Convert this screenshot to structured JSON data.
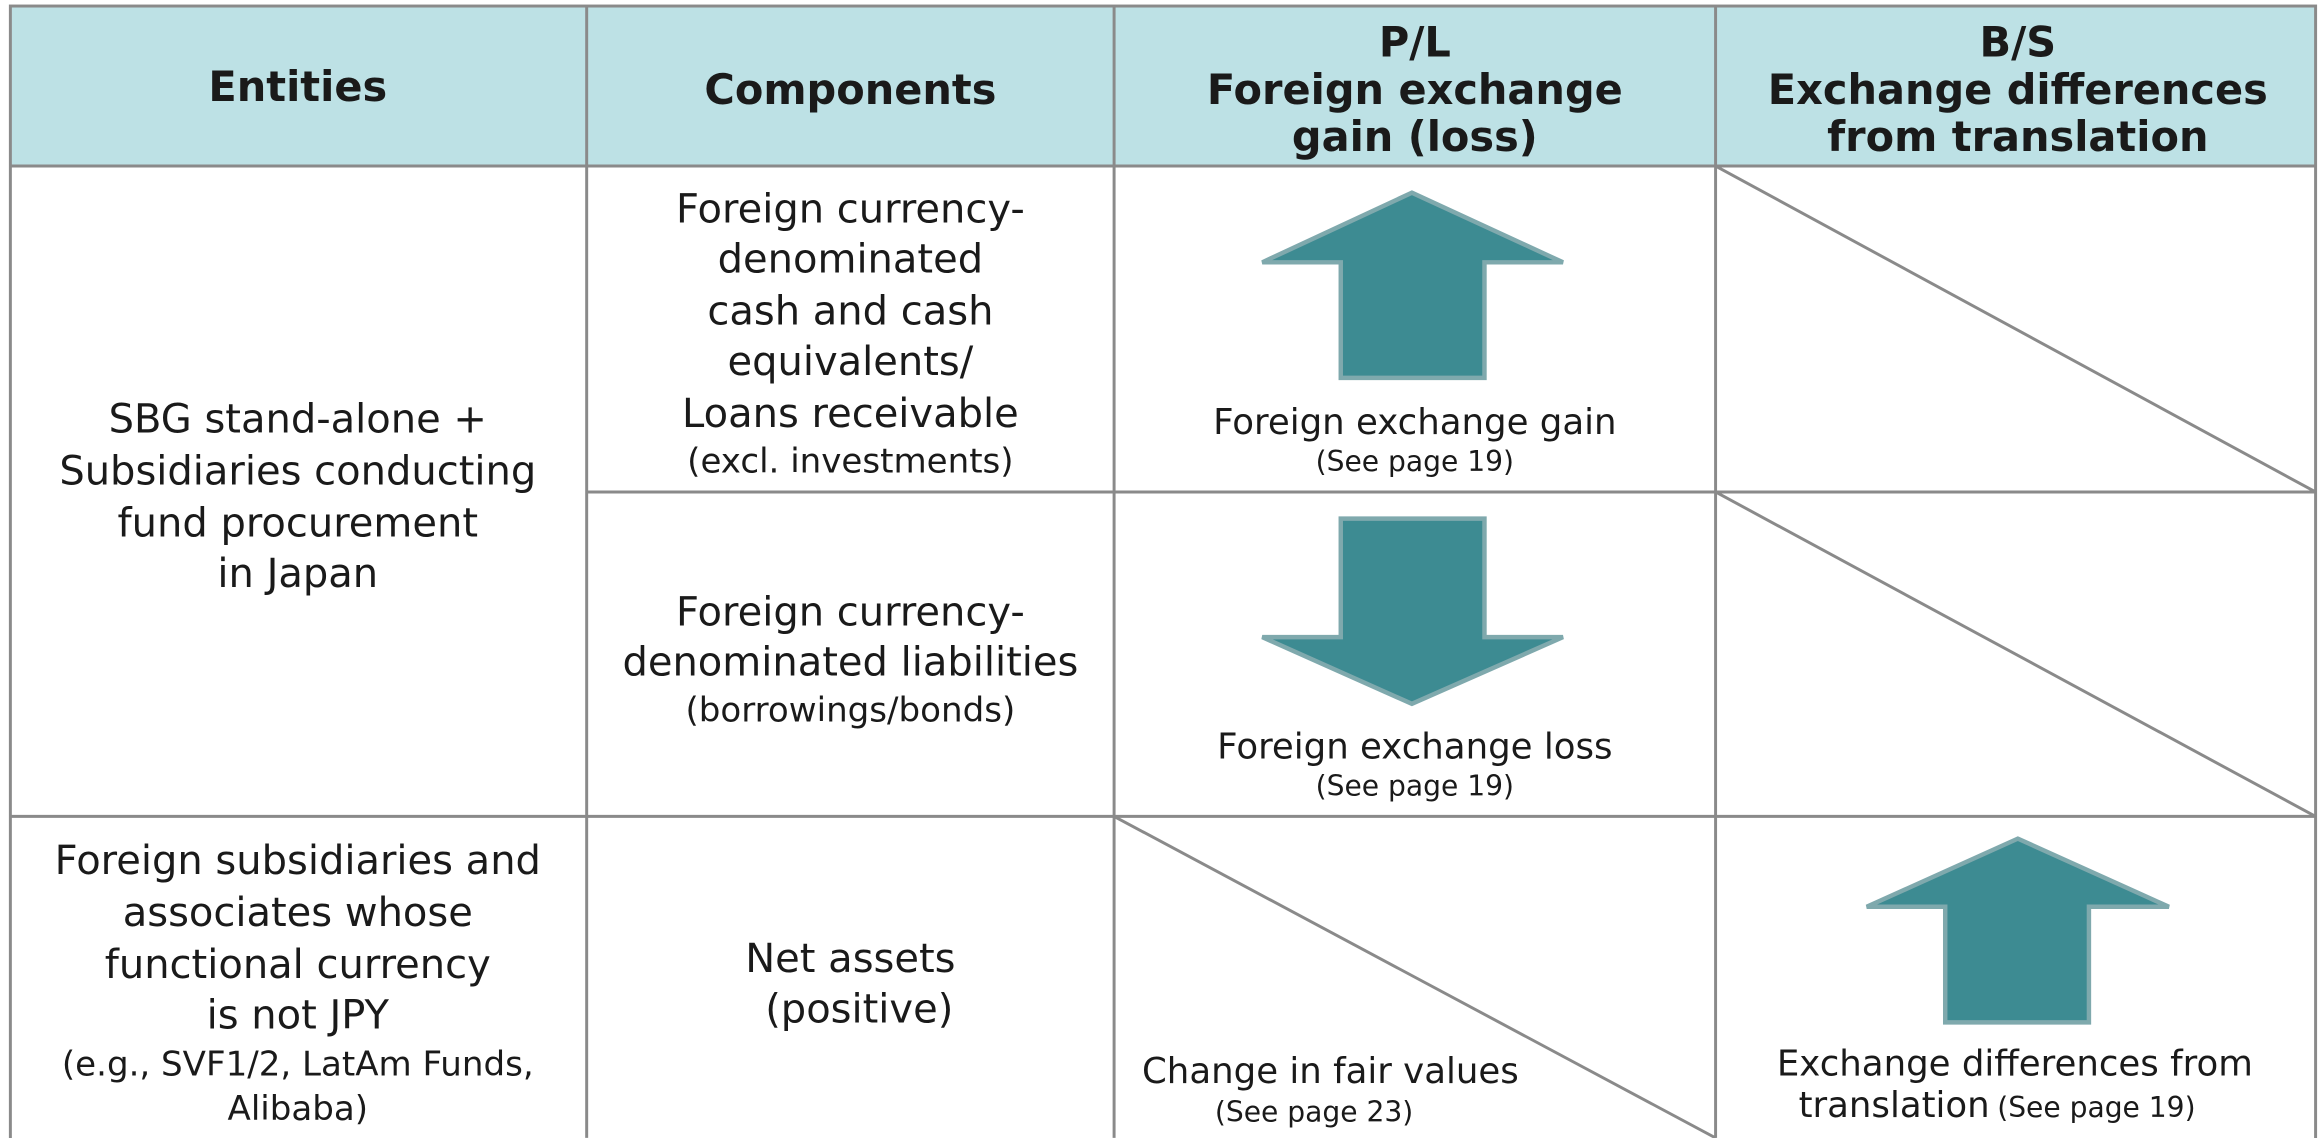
{
  "header": [
    "Entities",
    "Components",
    [
      "P/L",
      "Foreign exchange",
      "gain (loss)"
    ],
    [
      "B/S",
      "Exchange differences",
      "from translation"
    ]
  ],
  "rows": [
    {
      "entity": [
        "SBG stand-alone +",
        "Subsidiaries conducting",
        "fund procurement",
        "in Japan"
      ],
      "items": [
        {
          "component": [
            "Foreign currency-",
            "denominated",
            "cash and cash",
            "equivalents/",
            "Loans receivable",
            "(excl. investments)"
          ],
          "pl": "Foreign exchange gain",
          "pl_note": "(See page 19)"
        },
        {
          "component": [
            "Foreign currency-",
            "denominated liabilities",
            "(borrowings/bonds)"
          ],
          "pl": "Foreign exchange loss",
          "pl_note": "(See page 19)"
        }
      ]
    },
    {
      "entity": [
        "Foreign subsidiaries and",
        "associates whose",
        "functional currency",
        "is not JPY",
        "(e.g., SVF1/2, LatAm Funds,",
        "Alibaba)"
      ],
      "items": [
        {
          "component": [
            "Net assets",
            "(positive)"
          ],
          "pl": "Change in fair values",
          "pl_note": "(See page 23)",
          "bs": [
            "Exchange differences from",
            "translation"
          ],
          "bs_note": "(See page 19)"
        }
      ]
    }
  ]
}
